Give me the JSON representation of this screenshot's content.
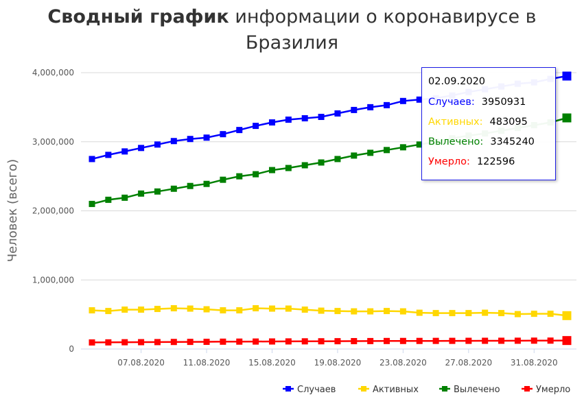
{
  "title": {
    "bold": "Сводный график",
    "rest": " информации о коронавирусе в Бразилия"
  },
  "tooltip": {
    "date": "02.09.2020",
    "rows": [
      {
        "label": "Случаев:",
        "value": "3950931",
        "color": "#0000ff"
      },
      {
        "label": "Активных:",
        "value": "483095",
        "color": "#ffd700"
      },
      {
        "label": "Вылечено:",
        "value": "3345240",
        "color": "#008000"
      },
      {
        "label": "Умерло:",
        "value": "122596",
        "color": "#ff0000"
      }
    ]
  },
  "chart_data": {
    "type": "line",
    "ylabel": "Человек (всего)",
    "ylim": [
      0,
      4000000
    ],
    "yticks": [
      "0",
      "1,000,000",
      "2,000,000",
      "3,000,000",
      "4,000,000"
    ],
    "x": [
      "04.08.2020",
      "05.08.2020",
      "06.08.2020",
      "07.08.2020",
      "08.08.2020",
      "09.08.2020",
      "10.08.2020",
      "11.08.2020",
      "12.08.2020",
      "13.08.2020",
      "14.08.2020",
      "15.08.2020",
      "16.08.2020",
      "17.08.2020",
      "18.08.2020",
      "19.08.2020",
      "20.08.2020",
      "21.08.2020",
      "22.08.2020",
      "23.08.2020",
      "24.08.2020",
      "25.08.2020",
      "26.08.2020",
      "27.08.2020",
      "28.08.2020",
      "29.08.2020",
      "30.08.2020",
      "31.08.2020",
      "01.09.2020",
      "02.09.2020"
    ],
    "xtick_labels": [
      "07.08.2020",
      "11.08.2020",
      "15.08.2020",
      "19.08.2020",
      "23.08.2020",
      "27.08.2020",
      "31.08.2020"
    ],
    "legend_position": "bottom-right",
    "grid": true,
    "series": [
      {
        "name": "Случаев",
        "color": "#0000ff",
        "values": [
          2750000,
          2810000,
          2860000,
          2910000,
          2960000,
          3010000,
          3040000,
          3060000,
          3110000,
          3170000,
          3230000,
          3280000,
          3320000,
          3340000,
          3360000,
          3410000,
          3460000,
          3500000,
          3530000,
          3590000,
          3610000,
          3630000,
          3670000,
          3720000,
          3760000,
          3800000,
          3840000,
          3860000,
          3910000,
          3950931
        ]
      },
      {
        "name": "Активных",
        "color": "#ffd700",
        "values": [
          560000,
          550000,
          570000,
          570000,
          580000,
          590000,
          585000,
          575000,
          560000,
          560000,
          590000,
          585000,
          585000,
          570000,
          555000,
          550000,
          545000,
          545000,
          550000,
          545000,
          525000,
          520000,
          520000,
          520000,
          525000,
          520000,
          505000,
          510000,
          510000,
          483095
        ]
      },
      {
        "name": "Вылечено",
        "color": "#008000",
        "values": [
          2100000,
          2160000,
          2190000,
          2250000,
          2280000,
          2320000,
          2360000,
          2390000,
          2450000,
          2500000,
          2530000,
          2590000,
          2620000,
          2660000,
          2700000,
          2750000,
          2800000,
          2840000,
          2880000,
          2920000,
          2960000,
          3000000,
          3050000,
          3090000,
          3120000,
          3160000,
          3200000,
          3240000,
          3280000,
          3345240
        ]
      },
      {
        "name": "Умерло",
        "color": "#ff0000",
        "values": [
          95000,
          96000,
          98000,
          99000,
          100000,
          102000,
          103000,
          104000,
          106000,
          107000,
          108000,
          109000,
          110000,
          111000,
          112000,
          113000,
          114000,
          115000,
          116000,
          116500,
          117000,
          117500,
          118000,
          118500,
          119000,
          119500,
          120000,
          121000,
          121500,
          122596
        ]
      }
    ]
  }
}
